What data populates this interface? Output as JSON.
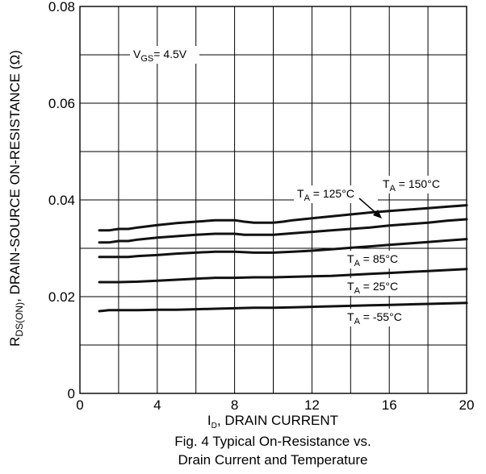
{
  "chart_data": {
    "type": "line",
    "xlabel_main": "I",
    "xlabel_sub": "D",
    "xlabel_rest": ", DRAIN CURRENT",
    "ylabel_main": "R",
    "ylabel_sub": "DS(ON)",
    "ylabel_rest": ", DRAIN-SOURCE ON-RESISTANCE (Ω)",
    "xlim": [
      0,
      20
    ],
    "ylim": [
      0,
      0.08
    ],
    "x_ticks": [
      "0",
      "4",
      "8",
      "12",
      "16",
      "20"
    ],
    "y_ticks": [
      "0",
      "0.02",
      "0.04",
      "0.06",
      "0.08"
    ],
    "grid": true,
    "caption_line1": "Fig. 4 Typical On-Resistance vs.",
    "caption_line2": "Drain Current and Temperature",
    "vgs_label": {
      "main": "V",
      "sub": "GS",
      "rest": "= 4.5V"
    },
    "series": [
      {
        "name_main": "T",
        "name_sub": "A",
        "name_rest": " = 150°C",
        "x": [
          1,
          1.5,
          2,
          2.5,
          3,
          4,
          5,
          6,
          7,
          8,
          8.5,
          9,
          10,
          10.5,
          11,
          12,
          13,
          14,
          15,
          16,
          17,
          18,
          19,
          20
        ],
        "y": [
          0.0337,
          0.0337,
          0.034,
          0.034,
          0.0343,
          0.0348,
          0.0352,
          0.0355,
          0.0358,
          0.0358,
          0.0355,
          0.0353,
          0.0353,
          0.0355,
          0.0358,
          0.0362,
          0.0366,
          0.037,
          0.0374,
          0.0377,
          0.038,
          0.0383,
          0.0386,
          0.0389
        ]
      },
      {
        "name_main": "T",
        "name_sub": "A",
        "name_rest": " = 125°C",
        "x": [
          1,
          1.5,
          2,
          2.5,
          3,
          4,
          5,
          6,
          7,
          8,
          8.5,
          9,
          10,
          11,
          12,
          13,
          14,
          15,
          16,
          17,
          18,
          19,
          20
        ],
        "y": [
          0.0312,
          0.0312,
          0.0315,
          0.0315,
          0.0318,
          0.0322,
          0.0325,
          0.0328,
          0.033,
          0.033,
          0.0328,
          0.0328,
          0.0328,
          0.0331,
          0.0334,
          0.0337,
          0.034,
          0.0343,
          0.0347,
          0.035,
          0.0353,
          0.0357,
          0.036
        ]
      },
      {
        "name_main": "T",
        "name_sub": "A",
        "name_rest": " = 85°C",
        "x": [
          1,
          2,
          2.5,
          3,
          4,
          5,
          6,
          7,
          8,
          9,
          10,
          11,
          12,
          13,
          14,
          15,
          16,
          17,
          18,
          19,
          20
        ],
        "y": [
          0.0282,
          0.0282,
          0.0282,
          0.0284,
          0.0286,
          0.0289,
          0.0291,
          0.0293,
          0.0293,
          0.0291,
          0.0291,
          0.0293,
          0.0295,
          0.0298,
          0.0301,
          0.0304,
          0.0307,
          0.031,
          0.0313,
          0.0316,
          0.0319
        ]
      },
      {
        "name_main": "T",
        "name_sub": "A",
        "name_rest": " = 25°C",
        "x": [
          1,
          2,
          3,
          4,
          5,
          6,
          7,
          8,
          9,
          10,
          11,
          12,
          13,
          14,
          15,
          16,
          17,
          18,
          19,
          20
        ],
        "y": [
          0.023,
          0.023,
          0.0231,
          0.0233,
          0.0235,
          0.0237,
          0.0239,
          0.0239,
          0.024,
          0.024,
          0.0241,
          0.0242,
          0.0243,
          0.0245,
          0.0247,
          0.0249,
          0.0251,
          0.0253,
          0.0255,
          0.0257
        ]
      },
      {
        "name_main": "T",
        "name_sub": "A",
        "name_rest": " = -55°C",
        "x": [
          1,
          1.5,
          2,
          3,
          4,
          5,
          6,
          7,
          8,
          9,
          10,
          11,
          12,
          13,
          14,
          15,
          16,
          17,
          18,
          19,
          20
        ],
        "y": [
          0.017,
          0.0172,
          0.0172,
          0.0172,
          0.0173,
          0.0173,
          0.0174,
          0.0175,
          0.0176,
          0.0177,
          0.0177,
          0.0178,
          0.0179,
          0.018,
          0.0181,
          0.0182,
          0.0183,
          0.0184,
          0.0185,
          0.0186,
          0.0187
        ]
      }
    ]
  }
}
